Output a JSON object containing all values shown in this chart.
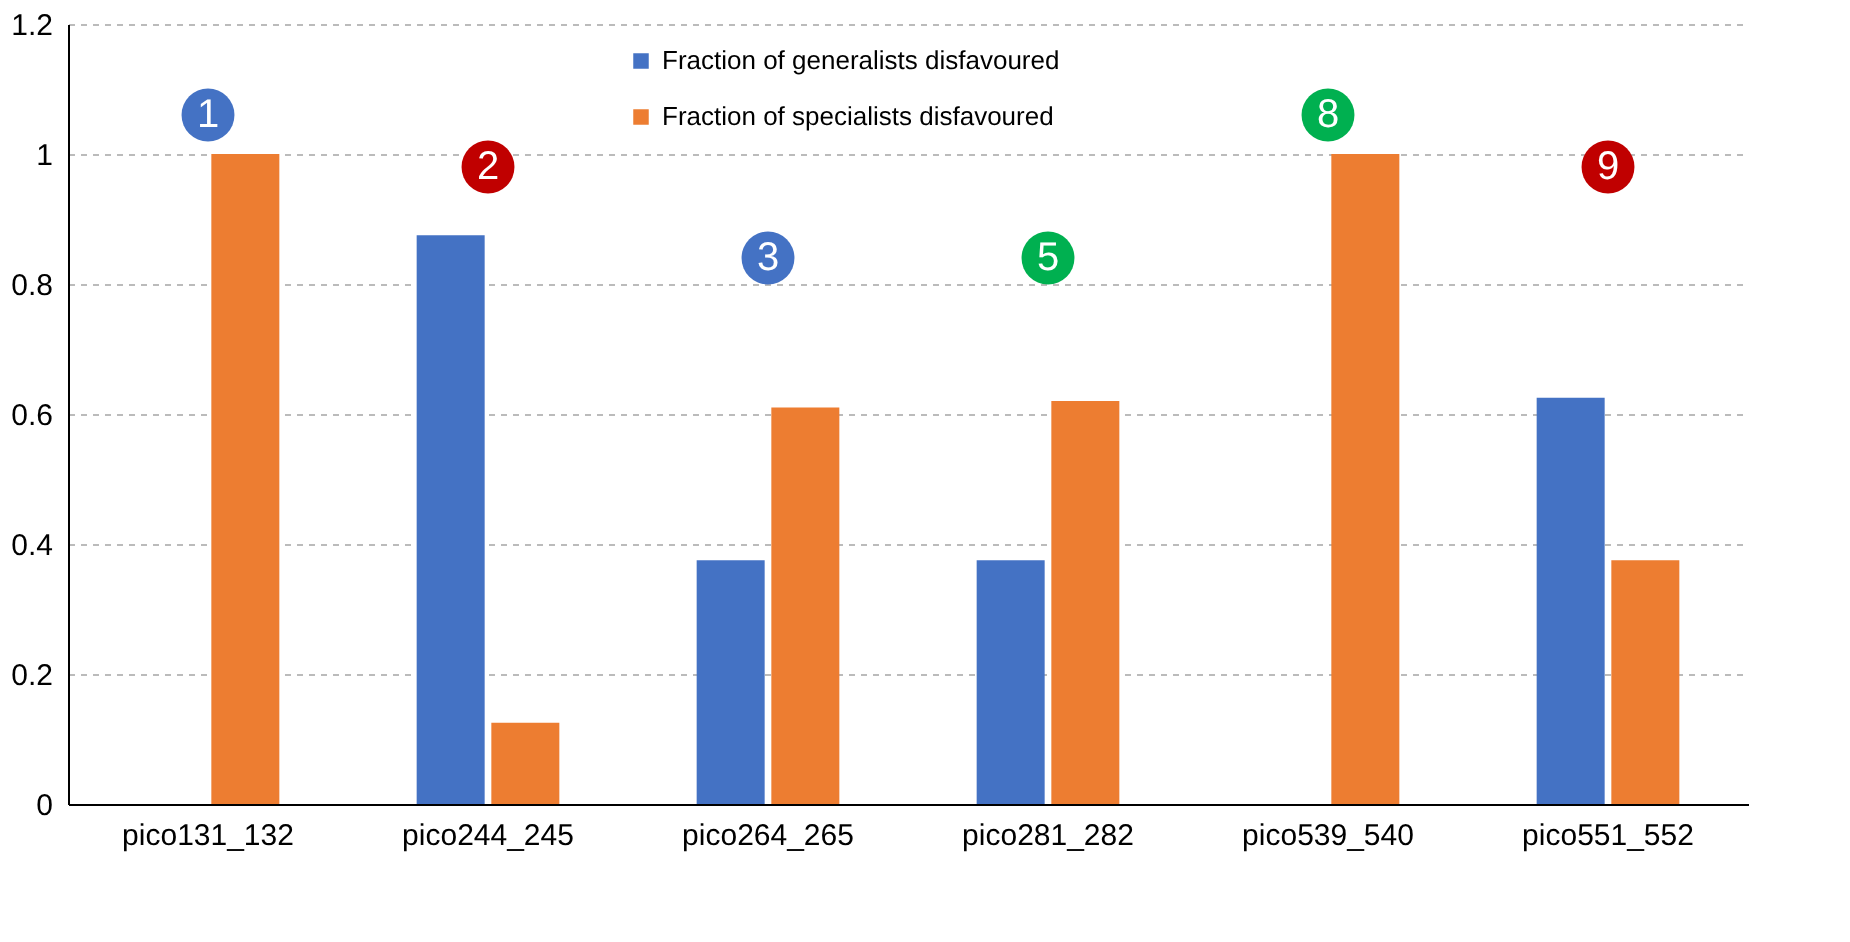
{
  "chart_data": {
    "type": "bar",
    "categories": [
      "pico131_132",
      "pico244_245",
      "pico264_265",
      "pico281_282",
      "pico539_540",
      "pico551_552"
    ],
    "series": [
      {
        "name": "Fraction of generalists disfavoured",
        "color": "#4472c4",
        "values": [
          0,
          0.875,
          0.375,
          0.375,
          0,
          0.625
        ]
      },
      {
        "name": "Fraction of specialists disfavoured",
        "color": "#ed7d31",
        "values": [
          1,
          0.125,
          0.61,
          0.62,
          1,
          0.375
        ]
      }
    ],
    "ylim": [
      0,
      1.2
    ],
    "yticks": [
      0,
      0.2,
      0.4,
      0.6,
      0.8,
      1,
      1.2
    ],
    "grid": "y",
    "legend": "top",
    "annotations": [
      {
        "text": "1",
        "x": "pico131_132",
        "y": 1.06
      },
      {
        "text": "2",
        "x": "pico244_245",
        "y": 0.98
      },
      {
        "text": "3",
        "x": "pico264_265",
        "y": 0.84
      },
      {
        "text": "5",
        "x": "pico281_282",
        "y": 0.84
      },
      {
        "text": "8",
        "x": "pico539_540",
        "y": 1.06
      },
      {
        "text": "9",
        "x": "pico551_552",
        "y": 0.98
      }
    ]
  }
}
